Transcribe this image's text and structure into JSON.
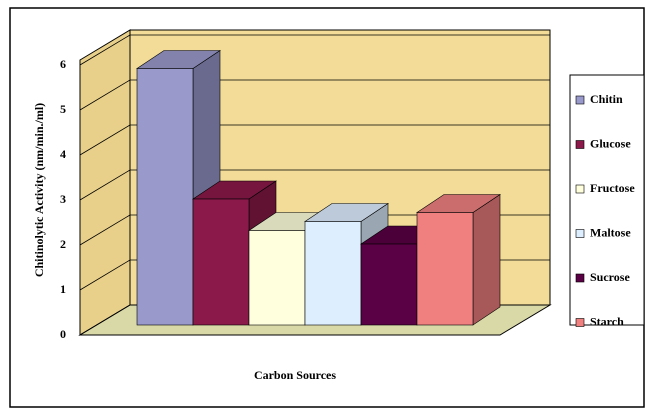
{
  "chart_data": {
    "type": "bar3d",
    "y_label": "Chitinolytic Activity (nm/min./ml)",
    "x_label": "Carbon Sources",
    "categories": [
      null
    ],
    "series": [
      {
        "name": "Chitin",
        "color": "#9999cc",
        "values": [
          5.7
        ]
      },
      {
        "name": "Glucose",
        "color": "#8b1a4a",
        "values": [
          2.8
        ]
      },
      {
        "name": "Fructose",
        "color": "#ffffdd",
        "values": [
          2.1
        ]
      },
      {
        "name": "Maltose",
        "color": "#ddeeff",
        "values": [
          2.3
        ]
      },
      {
        "name": "Sucrose",
        "color": "#5a0045",
        "values": [
          1.8
        ]
      },
      {
        "name": "Starch",
        "color": "#f08080",
        "values": [
          2.5
        ]
      }
    ],
    "ylim": [
      0,
      6
    ],
    "yticks": [
      0,
      1,
      2,
      3,
      4,
      5,
      6
    ],
    "grid": true,
    "legend": "right"
  }
}
